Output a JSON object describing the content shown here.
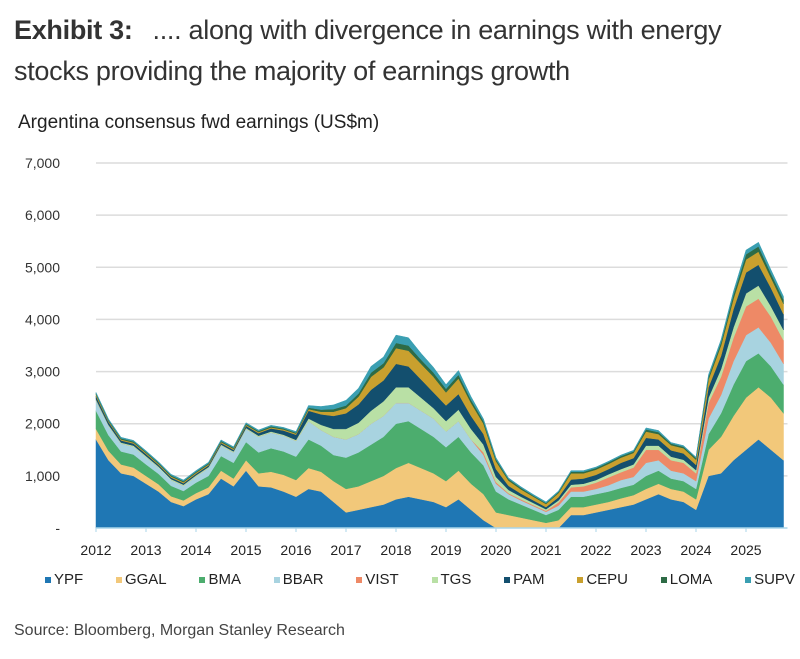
{
  "header": {
    "exhibit_label": "Exhibit 3:",
    "exhibit_text": ".... along with divergence in earnings with energy stocks providing the majority of earnings growth"
  },
  "source": "Source: Bloomberg, Morgan Stanley Research",
  "chart_data": {
    "type": "area",
    "stacked": true,
    "title": "Argentina consensus fwd earnings (US$m)",
    "xlabel": "",
    "ylabel": "",
    "ylim": [
      0,
      7000
    ],
    "xlim": [
      2012,
      2025.75
    ],
    "yticks": [
      0,
      1000,
      2000,
      3000,
      4000,
      5000,
      6000,
      7000
    ],
    "ytick_labels": [
      "-",
      "1,000",
      "2,000",
      "3,000",
      "4,000",
      "5,000",
      "6,000",
      "7,000"
    ],
    "xticks": [
      2012,
      2013,
      2014,
      2015,
      2016,
      2017,
      2018,
      2019,
      2020,
      2021,
      2022,
      2023,
      2024,
      2025
    ],
    "xtick_labels": [
      "2012",
      "2013",
      "2014",
      "2015",
      "2016",
      "2017",
      "2018",
      "2019",
      "2020",
      "2021",
      "2022",
      "2023",
      "2024",
      "2025"
    ],
    "grid": true,
    "legend_position": "bottom",
    "x": [
      2012.0,
      2012.25,
      2012.5,
      2012.75,
      2013.0,
      2013.25,
      2013.5,
      2013.75,
      2014.0,
      2014.25,
      2014.5,
      2014.75,
      2015.0,
      2015.25,
      2015.5,
      2015.75,
      2016.0,
      2016.25,
      2016.5,
      2016.75,
      2017.0,
      2017.25,
      2017.5,
      2017.75,
      2018.0,
      2018.25,
      2018.5,
      2018.75,
      2019.0,
      2019.25,
      2019.5,
      2019.75,
      2020.0,
      2020.25,
      2020.5,
      2020.75,
      2021.0,
      2021.25,
      2021.5,
      2021.75,
      2022.0,
      2022.25,
      2022.5,
      2022.75,
      2023.0,
      2023.25,
      2023.5,
      2023.75,
      2024.0,
      2024.25,
      2024.5,
      2024.75,
      2025.0,
      2025.25,
      2025.5,
      2025.75
    ],
    "series": [
      {
        "name": "YPF",
        "color": "#1f77b4",
        "values": [
          1700,
          1300,
          1050,
          1000,
          850,
          700,
          500,
          420,
          550,
          650,
          950,
          800,
          1100,
          800,
          780,
          700,
          600,
          750,
          700,
          500,
          300,
          350,
          400,
          450,
          550,
          600,
          550,
          500,
          400,
          550,
          350,
          150,
          0,
          0,
          0,
          0,
          0,
          0,
          250,
          250,
          300,
          350,
          400,
          450,
          550,
          650,
          550,
          500,
          350,
          1000,
          1050,
          1300,
          1500,
          1700,
          1500,
          1300
        ]
      },
      {
        "name": "GGAL",
        "color": "#f2c87a",
        "values": [
          200,
          180,
          170,
          160,
          150,
          140,
          110,
          110,
          120,
          130,
          150,
          150,
          200,
          250,
          300,
          320,
          320,
          400,
          380,
          400,
          450,
          450,
          500,
          550,
          600,
          650,
          600,
          550,
          500,
          550,
          500,
          500,
          300,
          250,
          200,
          150,
          100,
          150,
          150,
          150,
          150,
          150,
          170,
          180,
          200,
          200,
          200,
          200,
          200,
          500,
          700,
          850,
          1000,
          1000,
          1000,
          900
        ]
      },
      {
        "name": "BMA",
        "color": "#4cad6e",
        "values": [
          350,
          300,
          250,
          250,
          220,
          200,
          200,
          180,
          200,
          220,
          280,
          300,
          350,
          400,
          450,
          450,
          450,
          550,
          500,
          500,
          600,
          650,
          700,
          750,
          850,
          800,
          750,
          700,
          650,
          650,
          600,
          550,
          400,
          300,
          250,
          200,
          150,
          200,
          200,
          200,
          200,
          200,
          200,
          200,
          250,
          250,
          200,
          200,
          200,
          300,
          450,
          600,
          700,
          650,
          600,
          550
        ]
      },
      {
        "name": "BBAR",
        "color": "#a8d3e0",
        "values": [
          200,
          180,
          150,
          150,
          140,
          120,
          110,
          100,
          120,
          150,
          200,
          200,
          250,
          300,
          300,
          300,
          300,
          350,
          300,
          350,
          350,
          350,
          400,
          400,
          400,
          350,
          350,
          350,
          300,
          300,
          250,
          200,
          150,
          100,
          80,
          70,
          60,
          80,
          100,
          100,
          100,
          120,
          150,
          150,
          250,
          200,
          150,
          150,
          150,
          300,
          350,
          450,
          500,
          500,
          450,
          400
        ]
      },
      {
        "name": "VIST",
        "color": "#ee8966",
        "values": [
          0,
          0,
          0,
          0,
          0,
          0,
          0,
          0,
          0,
          0,
          0,
          0,
          0,
          0,
          0,
          0,
          0,
          0,
          0,
          0,
          0,
          0,
          0,
          0,
          0,
          0,
          0,
          0,
          0,
          0,
          0,
          50,
          30,
          20,
          20,
          20,
          20,
          60,
          80,
          100,
          120,
          150,
          150,
          180,
          250,
          200,
          200,
          200,
          150,
          300,
          350,
          450,
          550,
          550,
          500,
          450
        ]
      },
      {
        "name": "TGS",
        "color": "#b9e0a5",
        "values": [
          20,
          20,
          20,
          20,
          20,
          20,
          20,
          20,
          20,
          20,
          20,
          20,
          20,
          20,
          20,
          20,
          20,
          50,
          100,
          150,
          200,
          220,
          250,
          280,
          300,
          300,
          250,
          200,
          200,
          220,
          200,
          150,
          100,
          60,
          50,
          40,
          30,
          40,
          50,
          50,
          50,
          60,
          60,
          60,
          80,
          80,
          70,
          60,
          60,
          100,
          150,
          200,
          250,
          250,
          200,
          200
        ]
      },
      {
        "name": "PAM",
        "color": "#134f6e",
        "values": [
          60,
          50,
          40,
          40,
          40,
          30,
          30,
          30,
          30,
          30,
          30,
          30,
          40,
          50,
          60,
          80,
          100,
          150,
          200,
          250,
          300,
          350,
          400,
          400,
          450,
          400,
          350,
          300,
          300,
          300,
          250,
          200,
          150,
          80,
          60,
          50,
          40,
          60,
          100,
          100,
          100,
          100,
          120,
          120,
          150,
          120,
          120,
          120,
          100,
          200,
          250,
          350,
          400,
          400,
          350,
          300
        ]
      },
      {
        "name": "CEPU",
        "color": "#c9a02e",
        "values": [
          30,
          20,
          20,
          20,
          20,
          20,
          20,
          20,
          20,
          20,
          20,
          20,
          20,
          20,
          20,
          20,
          20,
          30,
          50,
          80,
          100,
          150,
          250,
          250,
          300,
          300,
          300,
          300,
          250,
          300,
          250,
          200,
          150,
          100,
          80,
          70,
          60,
          80,
          120,
          100,
          100,
          100,
          100,
          100,
          120,
          100,
          100,
          100,
          100,
          150,
          200,
          200,
          250,
          250,
          200,
          200
        ]
      },
      {
        "name": "LOMA",
        "color": "#2e6b45",
        "values": [
          20,
          20,
          20,
          20,
          20,
          20,
          20,
          20,
          20,
          20,
          20,
          20,
          20,
          20,
          20,
          20,
          20,
          30,
          40,
          50,
          50,
          60,
          80,
          80,
          100,
          100,
          80,
          80,
          70,
          70,
          60,
          50,
          40,
          30,
          30,
          20,
          20,
          20,
          30,
          30,
          30,
          30,
          30,
          30,
          40,
          40,
          30,
          30,
          30,
          50,
          60,
          80,
          100,
          100,
          80,
          80
        ]
      },
      {
        "name": "SUPV",
        "color": "#3a9fb2",
        "values": [
          20,
          20,
          20,
          20,
          20,
          20,
          20,
          20,
          20,
          20,
          20,
          20,
          20,
          20,
          20,
          20,
          20,
          40,
          60,
          80,
          100,
          100,
          120,
          120,
          150,
          150,
          120,
          100,
          80,
          80,
          60,
          40,
          30,
          20,
          20,
          20,
          20,
          20,
          20,
          20,
          20,
          20,
          20,
          20,
          30,
          30,
          20,
          20,
          20,
          40,
          50,
          60,
          80,
          80,
          70,
          60
        ]
      }
    ]
  }
}
